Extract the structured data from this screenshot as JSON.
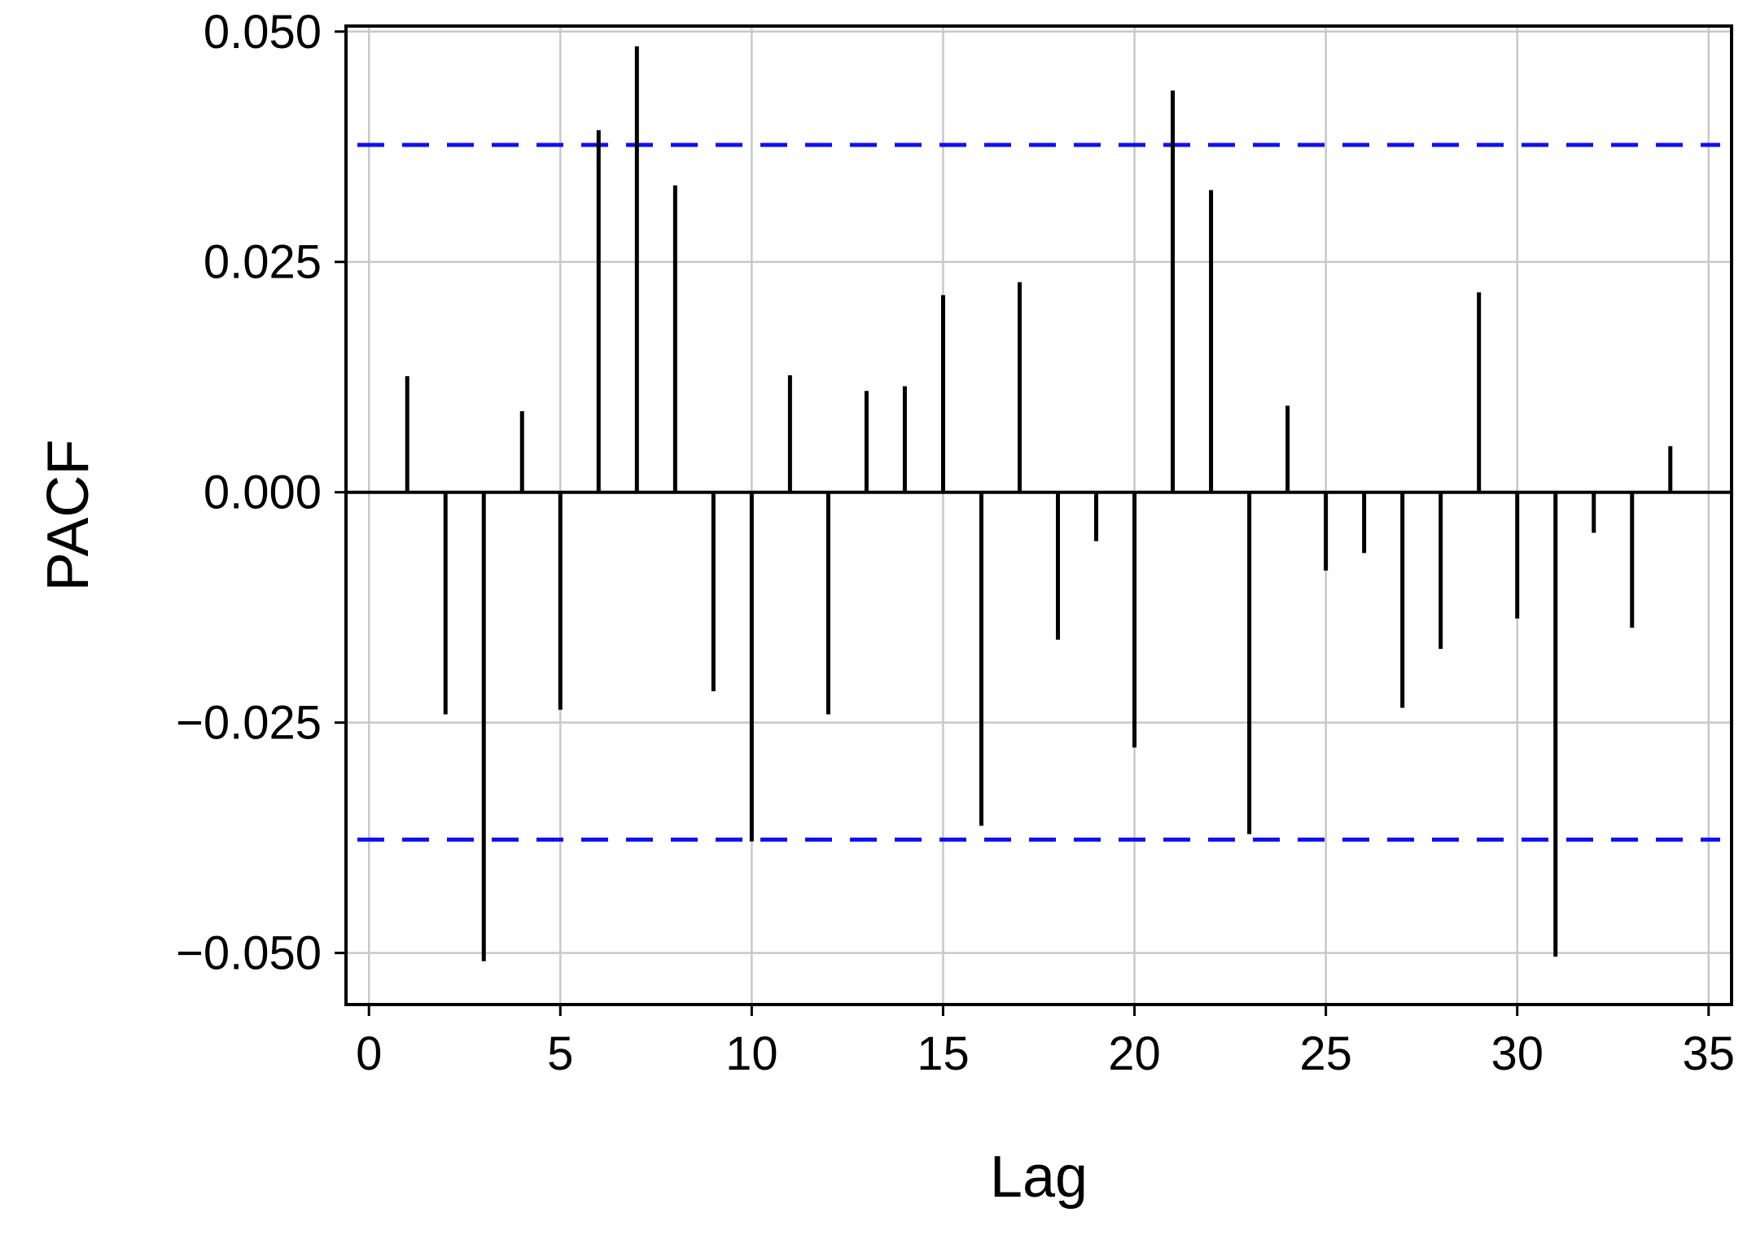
{
  "chart_data": {
    "type": "bar",
    "title": "",
    "xlabel": "Lag",
    "ylabel": "PACF",
    "xlim": [
      -0.6,
      35.6
    ],
    "ylim": [
      -0.0556,
      0.0506
    ],
    "x_ticks": [
      0,
      5,
      10,
      15,
      20,
      25,
      30,
      35
    ],
    "x_tick_labels": [
      "0",
      "5",
      "10",
      "15",
      "20",
      "25",
      "30",
      "35"
    ],
    "y_ticks": [
      0.05,
      0.025,
      0.0,
      -0.025,
      -0.05
    ],
    "y_tick_labels": [
      "0.050",
      "0.025",
      "0.000",
      "−0.025",
      "−0.050"
    ],
    "grid": true,
    "confidence_bound": 0.0377,
    "confidence_color": "#1010ee",
    "bar_color": "#000000",
    "lags": [
      1,
      2,
      3,
      4,
      5,
      6,
      7,
      8,
      9,
      10,
      11,
      12,
      13,
      14,
      15,
      16,
      17,
      18,
      19,
      20,
      21,
      22,
      23,
      24,
      25,
      26,
      27,
      28,
      29,
      30,
      31,
      32,
      33,
      34
    ],
    "values": [
      0.0126,
      -0.0241,
      -0.0509,
      0.0088,
      -0.0236,
      0.0393,
      0.0484,
      0.0333,
      -0.0216,
      -0.0379,
      0.0127,
      -0.0241,
      0.011,
      0.0115,
      0.0214,
      -0.0362,
      0.0228,
      -0.016,
      -0.0053,
      -0.0277,
      0.0436,
      0.0328,
      -0.0371,
      0.0094,
      -0.0085,
      -0.0066,
      -0.0234,
      -0.017,
      0.0217,
      -0.0137,
      -0.0504,
      -0.0044,
      -0.0147,
      0.005
    ]
  }
}
